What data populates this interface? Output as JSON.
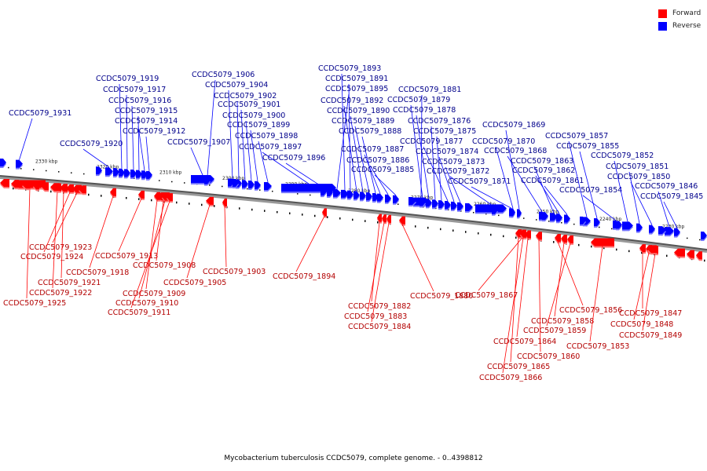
{
  "legend": {
    "forward_label": "Forward",
    "reverse_label": "Reverse",
    "forward_color": "#ff0000",
    "reverse_color": "#0000ff"
  },
  "caption": "Mycobacterium tuberculosis CCDC5079, complete genome. - 0..4398812",
  "scale": {
    "ticks": [
      "2330 kbp",
      "2320 kbp",
      "2310 kbp",
      "2300 kbp",
      "2290 kbp",
      "2280 kbp",
      "2270 kbp",
      "2260 kbp",
      "2250 kbp",
      "2240 kbp",
      "2230 kbp"
    ]
  },
  "genes": {
    "reverse": [
      "CCDC5079_1931",
      "CCDC5079_1920",
      "CCDC5079_1919",
      "CCDC5079_1917",
      "CCDC5079_1916",
      "CCDC5079_1915",
      "CCDC5079_1914",
      "CCDC5079_1912",
      "CCDC5079_1907",
      "CCDC5079_1906",
      "CCDC5079_1904",
      "CCDC5079_1902",
      "CCDC5079_1901",
      "CCDC5079_1900",
      "CCDC5079_1899",
      "CCDC5079_1898",
      "CCDC5079_1897",
      "CCDC5079_1896",
      "CCDC5079_1895",
      "CCDC5079_1893",
      "CCDC5079_1891",
      "CCDC5079_1892",
      "CCDC5079_1890",
      "CCDC5079_1889",
      "CCDC5079_1888",
      "CCDC5079_1887",
      "CCDC5079_1886",
      "CCDC5079_1885",
      "CCDC5079_1881",
      "CCDC5079_1879",
      "CCDC5079_1878",
      "CCDC5079_1876",
      "CCDC5079_1875",
      "CCDC5079_1877",
      "CCDC5079_1874",
      "CCDC5079_1873",
      "CCDC5079_1872",
      "CCDC5079_1871",
      "CCDC5079_1869",
      "CCDC5079_1870",
      "CCDC5079_1868",
      "CCDC5079_1863",
      "CCDC5079_1862",
      "CCDC5079_1861",
      "CCDC5079_1857",
      "CCDC5079_1855",
      "CCDC5079_1854",
      "CCDC5079_1852",
      "CCDC5079_1851",
      "CCDC5079_1850",
      "CCDC5079_1846",
      "CCDC5079_1845"
    ],
    "forward": [
      "CCDC5079_1923",
      "CCDC5079_1924",
      "CCDC5079_1918",
      "CCDC5079_1921",
      "CCDC5079_1922",
      "CCDC5079_1925",
      "CCDC5079_1913",
      "CCDC5079_1908",
      "CCDC5079_1909",
      "CCDC5079_1910",
      "CCDC5079_1911",
      "CCDC5079_1903",
      "CCDC5079_1905",
      "CCDC5079_1894",
      "CCDC5079_1882",
      "CCDC5079_1883",
      "CCDC5079_1884",
      "CCDC5079_1880",
      "CCDC5079_1867",
      "CCDC5079_1856",
      "CCDC5079_1858",
      "CCDC5079_1859",
      "CCDC5079_1864",
      "CCDC5079_1860",
      "CCDC5079_1865",
      "CCDC5079_1866",
      "CCDC5079_1853",
      "CCDC5079_1847",
      "CCDC5079_1848",
      "CCDC5079_1849"
    ]
  }
}
